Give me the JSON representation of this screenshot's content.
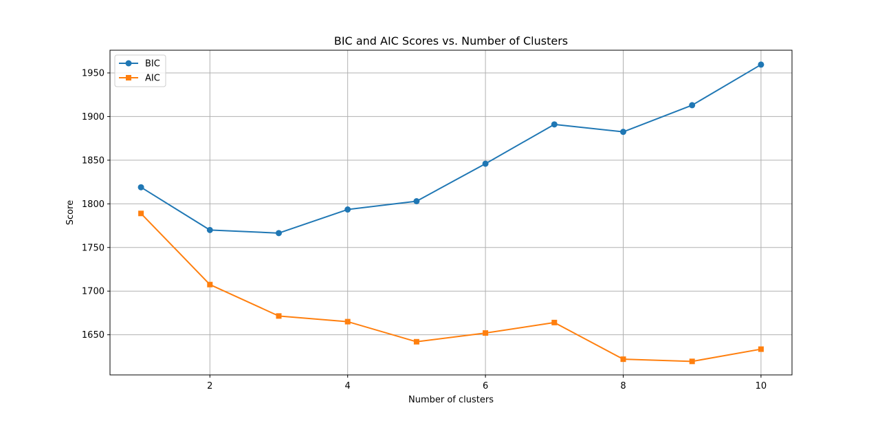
{
  "chart_data": {
    "type": "line",
    "title": "BIC and AIC Scores vs. Number of Clusters",
    "xlabel": "Number of clusters",
    "ylabel": "Score",
    "x": [
      1,
      2,
      3,
      4,
      5,
      6,
      7,
      8,
      9,
      10
    ],
    "xlim": [
      0.55,
      10.45
    ],
    "ylim": [
      1604,
      1976
    ],
    "xticks": [
      2,
      4,
      6,
      8,
      10
    ],
    "xtick_labels": [
      "2",
      "4",
      "6",
      "8",
      "10"
    ],
    "yticks": [
      1650,
      1700,
      1750,
      1800,
      1850,
      1900,
      1950
    ],
    "ytick_labels": [
      "1650",
      "1700",
      "1750",
      "1800",
      "1850",
      "1900",
      "1950"
    ],
    "grid": true,
    "legend_position": "top-left",
    "series": [
      {
        "name": "BIC",
        "marker": "circle",
        "color": "#1f77b4",
        "values": [
          1819,
          1770,
          1766.5,
          1793.5,
          1803,
          1846,
          1891,
          1882.5,
          1913,
          1959.5
        ]
      },
      {
        "name": "AIC",
        "marker": "square",
        "color": "#ff7f0e",
        "values": [
          1789,
          1707.5,
          1671.5,
          1665,
          1642,
          1652,
          1664,
          1622,
          1619.5,
          1633.5
        ]
      }
    ]
  }
}
